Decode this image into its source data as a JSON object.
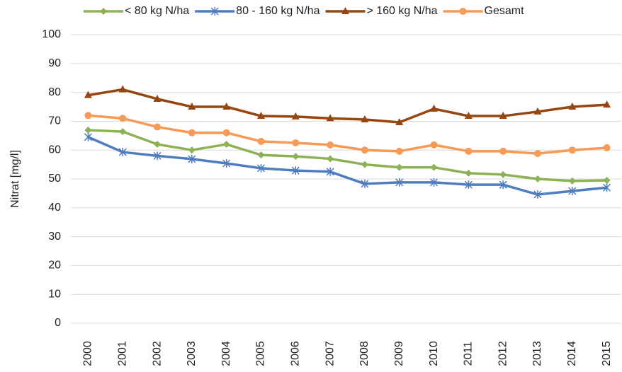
{
  "chart_data": {
    "type": "line",
    "y_label": "Nitrat [mg/l]",
    "categories": [
      "2000",
      "2001",
      "2002",
      "2003",
      "2004",
      "2005",
      "2006",
      "2007",
      "2008",
      "2009",
      "2010",
      "2011",
      "2012",
      "2013",
      "2014",
      "2015"
    ],
    "ylim": [
      0,
      100
    ],
    "yticks": [
      0,
      10,
      20,
      30,
      40,
      50,
      60,
      70,
      80,
      90,
      100
    ],
    "grid": true,
    "legend": "top",
    "series": [
      {
        "name": "< 80 kg N/ha",
        "color": "#8db255",
        "marker": "diamond",
        "values": [
          66.9,
          66.4,
          62,
          60,
          62,
          58.3,
          57.8,
          57,
          55,
          54,
          54,
          52,
          51.5,
          50,
          49.3,
          49.5
        ]
      },
      {
        "name": "80 - 160 kg N/ha",
        "color": "#4f7dbf",
        "marker": "star",
        "values": [
          64.5,
          59.3,
          58,
          56.9,
          55.4,
          53.7,
          52.9,
          52.5,
          48.3,
          48.8,
          48.8,
          48,
          48,
          44.6,
          45.8,
          47
        ]
      },
      {
        "name": "> 160 kg N/ha",
        "color": "#964610",
        "marker": "triangle",
        "values": [
          79,
          81,
          77.7,
          75,
          75,
          71.8,
          71.6,
          71,
          70.6,
          69.6,
          74.3,
          71.8,
          71.8,
          73.3,
          75,
          75.7
        ]
      },
      {
        "name": "Gesamt",
        "color": "#f79a55",
        "marker": "circle",
        "values": [
          72,
          71,
          68,
          66,
          66,
          63,
          62.5,
          61.8,
          60,
          59.6,
          61.8,
          59.6,
          59.6,
          58.8,
          60,
          60.8
        ]
      }
    ]
  }
}
